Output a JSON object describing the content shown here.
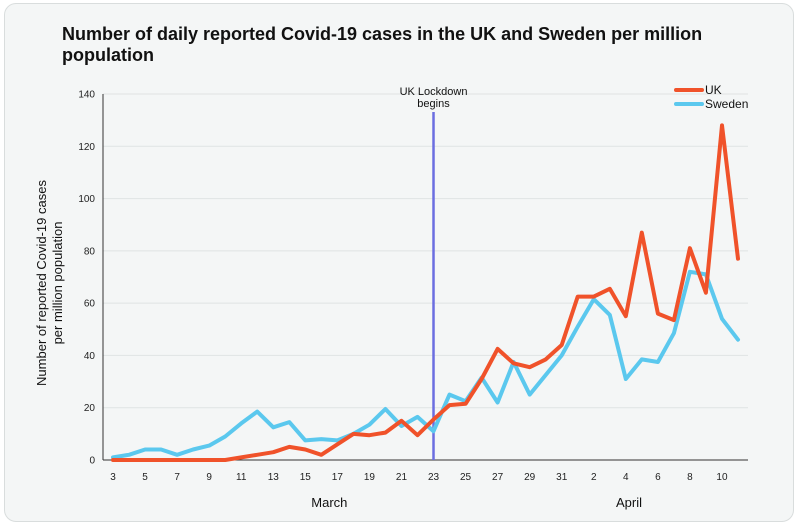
{
  "chart_data": {
    "type": "line",
    "title": "Number of daily reported Covid-19 cases in the UK and Sweden per million population",
    "ylabel": "Number of reported Covid-19 cases per million population",
    "xlabel": "",
    "ylim": [
      0,
      140
    ],
    "yticks": [
      0,
      20,
      40,
      60,
      80,
      100,
      120,
      140
    ],
    "xlim": [
      0,
      39
    ],
    "x_tick_labels": [
      {
        "x": 0,
        "label": "3"
      },
      {
        "x": 2,
        "label": "5"
      },
      {
        "x": 4,
        "label": "7"
      },
      {
        "x": 6,
        "label": "9"
      },
      {
        "x": 8,
        "label": "11"
      },
      {
        "x": 10,
        "label": "13"
      },
      {
        "x": 12,
        "label": "15"
      },
      {
        "x": 14,
        "label": "17"
      },
      {
        "x": 16,
        "label": "19"
      },
      {
        "x": 18,
        "label": "21"
      },
      {
        "x": 20,
        "label": "23"
      },
      {
        "x": 22,
        "label": "25"
      },
      {
        "x": 24,
        "label": "27"
      },
      {
        "x": 26,
        "label": "29"
      },
      {
        "x": 28,
        "label": "31"
      },
      {
        "x": 30,
        "label": "2"
      },
      {
        "x": 32,
        "label": "4"
      },
      {
        "x": 34,
        "label": "6"
      },
      {
        "x": 36,
        "label": "8"
      },
      {
        "x": 38,
        "label": "10"
      }
    ],
    "month_labels": [
      {
        "label": "March",
        "x": 13.5
      },
      {
        "label": "April",
        "x": 32.2
      }
    ],
    "annotation": {
      "text_line1": "UK Lockdown",
      "text_line2": "begins",
      "x": 20,
      "color": "#6b6ee0"
    },
    "legend_position": "top-right",
    "series": [
      {
        "name": "UK",
        "color": "#f0522a",
        "values": [
          0,
          0,
          0,
          0,
          0,
          0,
          0,
          0,
          1,
          2,
          3,
          5,
          4,
          2,
          6,
          10,
          9.5,
          10.5,
          15,
          9.5,
          15.5,
          21,
          21.5,
          31,
          42.5,
          37,
          35.5,
          38.5,
          44,
          62.5,
          62.5,
          65.5,
          55,
          87,
          56,
          53.5,
          81,
          64,
          128,
          77
        ]
      },
      {
        "name": "Sweden",
        "color": "#5bc8ee",
        "values": [
          1,
          2,
          4,
          4,
          2,
          4,
          5.5,
          9,
          14,
          18.5,
          12.5,
          14.5,
          7.5,
          8,
          7.5,
          10,
          13.5,
          19.5,
          13,
          16.5,
          11,
          25,
          22.5,
          31.5,
          22,
          37.5,
          25,
          32.5,
          40,
          51,
          61.5,
          55.5,
          31,
          38.5,
          37.5,
          48.5,
          72,
          71,
          54,
          46
        ]
      }
    ]
  }
}
